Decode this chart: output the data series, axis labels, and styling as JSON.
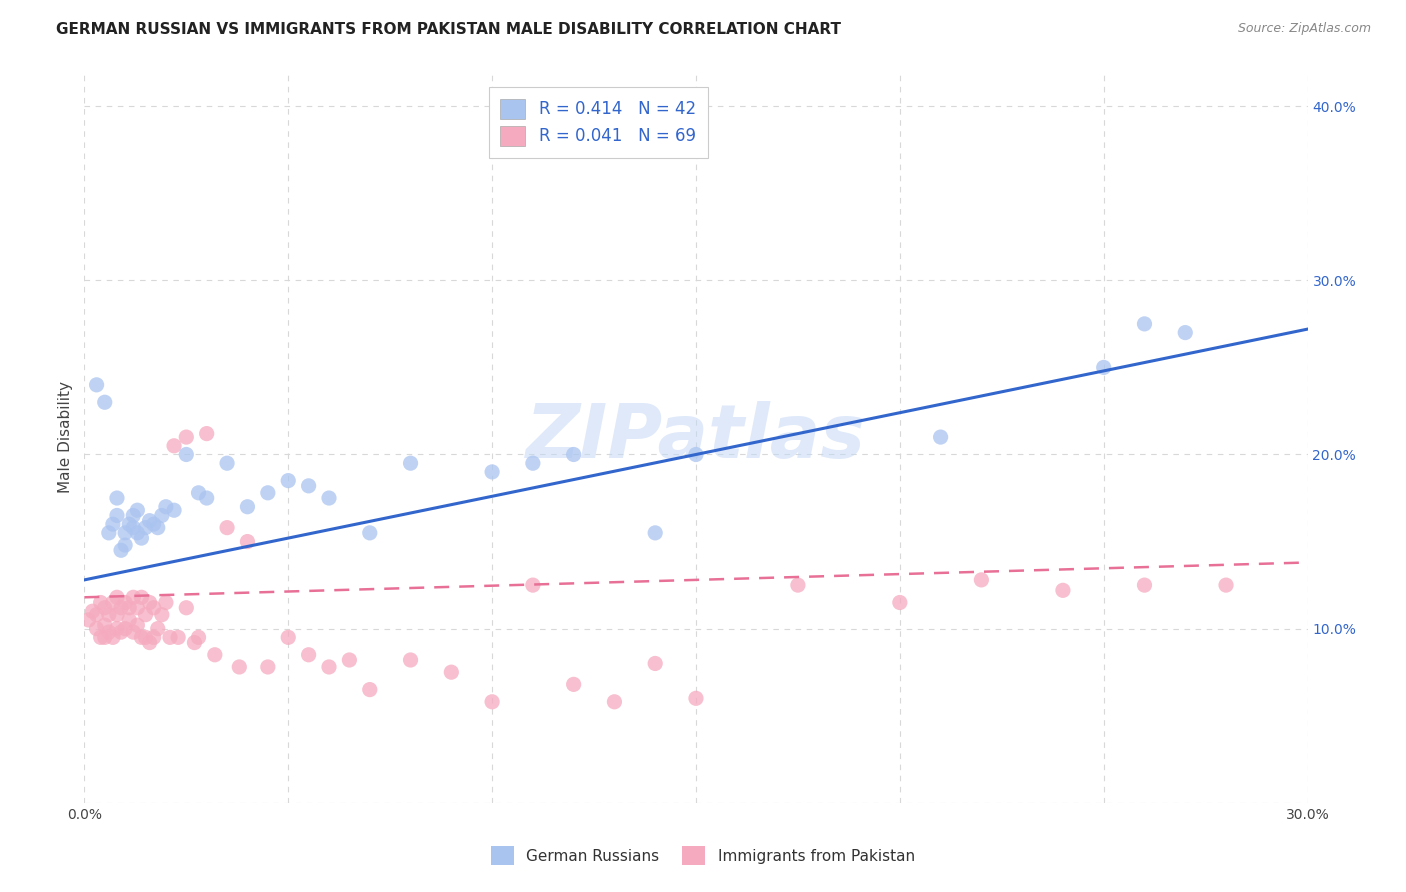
{
  "title": "GERMAN RUSSIAN VS IMMIGRANTS FROM PAKISTAN MALE DISABILITY CORRELATION CHART",
  "source": "Source: ZipAtlas.com",
  "ylabel": "Male Disability",
  "xlim": [
    0.0,
    0.3
  ],
  "ylim": [
    0.0,
    0.42
  ],
  "xticks": [
    0.0,
    0.05,
    0.1,
    0.15,
    0.2,
    0.25,
    0.3
  ],
  "yticks": [
    0.0,
    0.1,
    0.2,
    0.3,
    0.4
  ],
  "background_color": "#ffffff",
  "grid_color": "#d8d8d8",
  "watermark": "ZIPatlas",
  "series1_color": "#aac4f0",
  "series2_color": "#f5aabf",
  "line1_color": "#3366cc",
  "line2_color": "#e87097",
  "blue_text_color": "#3366cc",
  "series1_name": "German Russians",
  "series2_name": "Immigrants from Pakistan",
  "line1_x0": 0.0,
  "line1_y0": 0.128,
  "line1_x1": 0.3,
  "line1_y1": 0.272,
  "line2_x0": 0.0,
  "line2_y0": 0.118,
  "line2_x1": 0.3,
  "line2_y1": 0.138,
  "scatter1_x": [
    0.003,
    0.005,
    0.006,
    0.007,
    0.008,
    0.008,
    0.009,
    0.01,
    0.01,
    0.011,
    0.012,
    0.012,
    0.013,
    0.013,
    0.014,
    0.015,
    0.016,
    0.017,
    0.018,
    0.019,
    0.02,
    0.022,
    0.025,
    0.028,
    0.03,
    0.035,
    0.04,
    0.045,
    0.05,
    0.055,
    0.06,
    0.07,
    0.08,
    0.1,
    0.11,
    0.12,
    0.14,
    0.15,
    0.21,
    0.25,
    0.26,
    0.27
  ],
  "scatter1_y": [
    0.24,
    0.23,
    0.155,
    0.16,
    0.175,
    0.165,
    0.145,
    0.148,
    0.155,
    0.16,
    0.165,
    0.158,
    0.155,
    0.168,
    0.152,
    0.158,
    0.162,
    0.16,
    0.158,
    0.165,
    0.17,
    0.168,
    0.2,
    0.178,
    0.175,
    0.195,
    0.17,
    0.178,
    0.185,
    0.182,
    0.175,
    0.155,
    0.195,
    0.19,
    0.195,
    0.2,
    0.155,
    0.2,
    0.21,
    0.25,
    0.275,
    0.27
  ],
  "scatter2_x": [
    0.001,
    0.002,
    0.003,
    0.003,
    0.004,
    0.004,
    0.005,
    0.005,
    0.005,
    0.006,
    0.006,
    0.007,
    0.007,
    0.008,
    0.008,
    0.008,
    0.009,
    0.009,
    0.01,
    0.01,
    0.011,
    0.011,
    0.012,
    0.012,
    0.013,
    0.013,
    0.014,
    0.014,
    0.015,
    0.015,
    0.016,
    0.016,
    0.017,
    0.017,
    0.018,
    0.019,
    0.02,
    0.021,
    0.022,
    0.023,
    0.025,
    0.025,
    0.027,
    0.028,
    0.03,
    0.032,
    0.035,
    0.038,
    0.04,
    0.045,
    0.05,
    0.055,
    0.06,
    0.065,
    0.07,
    0.08,
    0.09,
    0.1,
    0.11,
    0.12,
    0.13,
    0.14,
    0.15,
    0.175,
    0.2,
    0.22,
    0.24,
    0.26,
    0.28
  ],
  "scatter2_y": [
    0.105,
    0.11,
    0.1,
    0.108,
    0.095,
    0.115,
    0.095,
    0.102,
    0.112,
    0.098,
    0.108,
    0.095,
    0.115,
    0.1,
    0.108,
    0.118,
    0.098,
    0.112,
    0.1,
    0.115,
    0.105,
    0.112,
    0.098,
    0.118,
    0.102,
    0.112,
    0.095,
    0.118,
    0.095,
    0.108,
    0.092,
    0.115,
    0.095,
    0.112,
    0.1,
    0.108,
    0.115,
    0.095,
    0.205,
    0.095,
    0.21,
    0.112,
    0.092,
    0.095,
    0.212,
    0.085,
    0.158,
    0.078,
    0.15,
    0.078,
    0.095,
    0.085,
    0.078,
    0.082,
    0.065,
    0.082,
    0.075,
    0.058,
    0.125,
    0.068,
    0.058,
    0.08,
    0.06,
    0.125,
    0.115,
    0.128,
    0.122,
    0.125,
    0.125
  ]
}
